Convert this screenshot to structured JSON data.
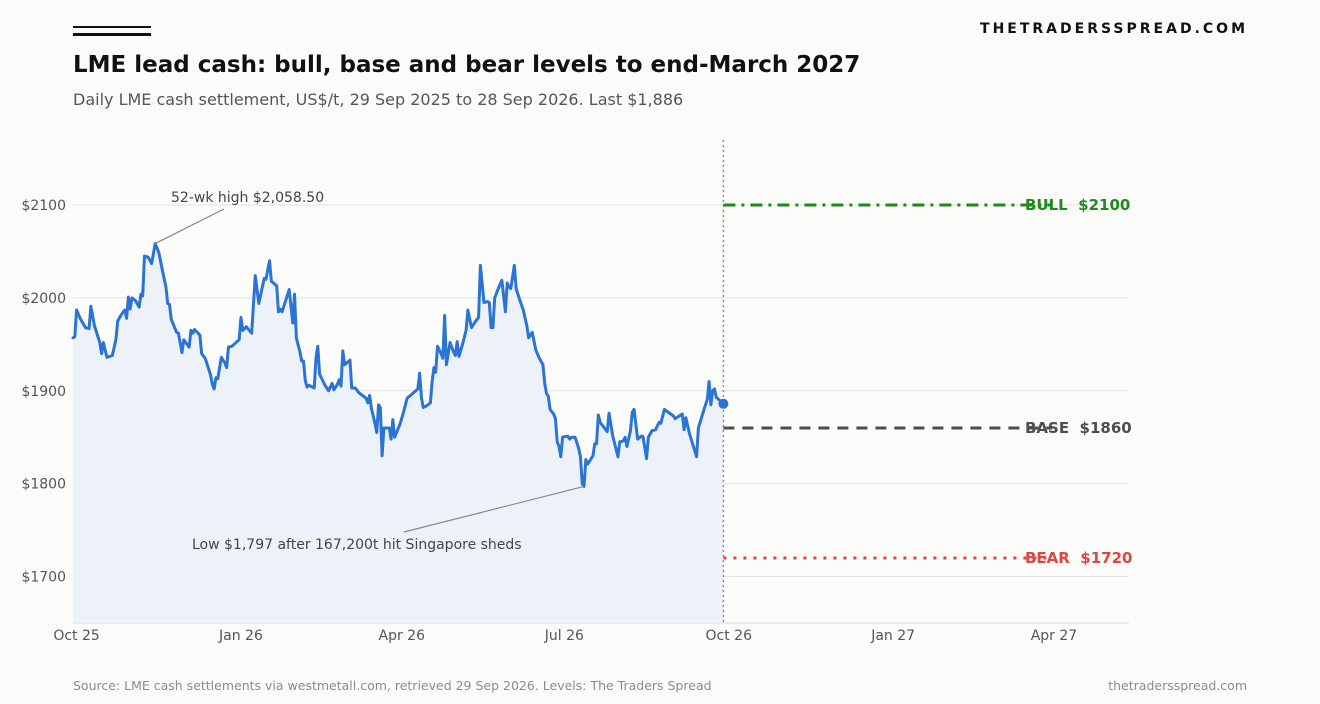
{
  "header": {
    "brand": "THETRADERSSPREAD.COM",
    "title": "LME lead cash: bull, base and bear levels to end-March 2027",
    "subtitle": "Daily LME cash settlement, US$/t, 29 Sep 2025 to 28 Sep 2026. Last $1,886"
  },
  "footer": {
    "source": "Source: LME cash settlements via westmetall.com, retrieved 29 Sep 2026. Levels: The Traders Spread",
    "site": "thetradersspread.com"
  },
  "chart_data": {
    "type": "line",
    "xlabel": "",
    "ylabel": "",
    "ylim": [
      1650,
      2170
    ],
    "xlim": [
      "2025-09-29",
      "2027-05-13"
    ],
    "grid": "horizontal",
    "y_ticks": [
      1700,
      1800,
      1900,
      2000,
      2100
    ],
    "y_tick_labels": [
      "$1700",
      "$1800",
      "$1900",
      "$2000",
      "$2100"
    ],
    "x_ticks": [
      "2025-10-01",
      "2026-01-01",
      "2026-04-01",
      "2026-07-01",
      "2026-10-01",
      "2027-01-01",
      "2027-04-01"
    ],
    "x_tick_labels": [
      "Oct 25",
      "Jan 26",
      "Apr 26",
      "Jul 26",
      "Oct 26",
      "Jan 27",
      "Apr 27"
    ],
    "series": [
      {
        "name": "",
        "color": "#2b74d6",
        "fill": "#edf2f9",
        "last_value": 1886,
        "points": [
          [
            "2025-09-29",
            1957
          ],
          [
            "2025-09-30",
            1958
          ],
          [
            "2025-10-01",
            1987
          ],
          [
            "2025-10-03",
            1978
          ],
          [
            "2025-10-06",
            1968
          ],
          [
            "2025-10-08",
            1967
          ],
          [
            "2025-10-09",
            1991
          ],
          [
            "2025-10-11",
            1970
          ],
          [
            "2025-10-14",
            1952
          ],
          [
            "2025-10-15",
            1940
          ],
          [
            "2025-10-16",
            1952
          ],
          [
            "2025-10-18",
            1936
          ],
          [
            "2025-10-21",
            1938
          ],
          [
            "2025-10-23",
            1955
          ],
          [
            "2025-10-24",
            1975
          ],
          [
            "2025-10-26",
            1982
          ],
          [
            "2025-10-28",
            1987
          ],
          [
            "2025-10-29",
            1978
          ],
          [
            "2025-10-30",
            2001
          ],
          [
            "2025-10-31",
            1988
          ],
          [
            "2025-11-01",
            2000
          ],
          [
            "2025-11-03",
            1997
          ],
          [
            "2025-11-05",
            1990
          ],
          [
            "2025-11-06",
            2004
          ],
          [
            "2025-11-07",
            2002
          ],
          [
            "2025-11-08",
            2045
          ],
          [
            "2025-11-10",
            2044
          ],
          [
            "2025-11-12",
            2037
          ],
          [
            "2025-11-14",
            2058.5
          ],
          [
            "2025-11-16",
            2049
          ],
          [
            "2025-11-18",
            2030
          ],
          [
            "2025-11-20",
            2012
          ],
          [
            "2025-11-21",
            1994
          ],
          [
            "2025-11-22",
            1993
          ],
          [
            "2025-11-23",
            1977
          ],
          [
            "2025-11-26",
            1963
          ],
          [
            "2025-11-27",
            1962
          ],
          [
            "2025-11-29",
            1941
          ],
          [
            "2025-11-30",
            1955
          ],
          [
            "2025-12-03",
            1947
          ],
          [
            "2025-12-04",
            1965
          ],
          [
            "2025-12-05",
            1962
          ],
          [
            "2025-12-06",
            1966
          ],
          [
            "2025-12-09",
            1960
          ],
          [
            "2025-12-10",
            1940
          ],
          [
            "2025-12-12",
            1935
          ],
          [
            "2025-12-15",
            1917
          ],
          [
            "2025-12-16",
            1907
          ],
          [
            "2025-12-17",
            1902
          ],
          [
            "2025-12-18",
            1914
          ],
          [
            "2025-12-19",
            1913
          ],
          [
            "2025-12-21",
            1936
          ],
          [
            "2025-12-23",
            1930
          ],
          [
            "2025-12-24",
            1925
          ],
          [
            "2025-12-25",
            1947
          ],
          [
            "2025-12-27",
            1948
          ],
          [
            "2025-12-31",
            1955
          ],
          [
            "2026-01-01",
            1979
          ],
          [
            "2026-01-02",
            1965
          ],
          [
            "2026-01-04",
            1969
          ],
          [
            "2026-01-07",
            1962
          ],
          [
            "2026-01-09",
            2024
          ],
          [
            "2026-01-11",
            1994
          ],
          [
            "2026-01-14",
            2021
          ],
          [
            "2026-01-15",
            2020
          ],
          [
            "2026-01-17",
            2040
          ],
          [
            "2026-01-18",
            2018
          ],
          [
            "2026-01-21",
            2013
          ],
          [
            "2026-01-22",
            1985
          ],
          [
            "2026-01-23",
            1988
          ],
          [
            "2026-01-24",
            1985
          ],
          [
            "2026-01-28",
            2009
          ],
          [
            "2026-01-30",
            1973
          ],
          [
            "2026-01-31",
            2004
          ],
          [
            "2026-02-01",
            1957
          ],
          [
            "2026-02-03",
            1942
          ],
          [
            "2026-02-04",
            1932
          ],
          [
            "2026-02-05",
            1932
          ],
          [
            "2026-02-06",
            1911
          ],
          [
            "2026-02-07",
            1904
          ],
          [
            "2026-02-08",
            1906
          ],
          [
            "2026-02-11",
            1903
          ],
          [
            "2026-02-12",
            1935
          ],
          [
            "2026-02-13",
            1948
          ],
          [
            "2026-02-14",
            1918
          ],
          [
            "2026-02-17",
            1906
          ],
          [
            "2026-02-19",
            1900
          ],
          [
            "2026-02-21",
            1908
          ],
          [
            "2026-02-22",
            1901
          ],
          [
            "2026-02-24",
            1907
          ],
          [
            "2026-02-25",
            1912
          ],
          [
            "2026-02-26",
            1905
          ],
          [
            "2026-02-27",
            1943
          ],
          [
            "2026-02-28",
            1928
          ],
          [
            "2026-03-03",
            1933
          ],
          [
            "2026-03-04",
            1903
          ],
          [
            "2026-03-06",
            1903
          ],
          [
            "2026-03-08",
            1898
          ],
          [
            "2026-03-10",
            1895
          ],
          [
            "2026-03-12",
            1892
          ],
          [
            "2026-03-13",
            1887
          ],
          [
            "2026-03-14",
            1895
          ],
          [
            "2026-03-15",
            1881
          ],
          [
            "2026-03-17",
            1865
          ],
          [
            "2026-03-18",
            1855
          ],
          [
            "2026-03-19",
            1885
          ],
          [
            "2026-03-20",
            1882
          ],
          [
            "2026-03-21",
            1830
          ],
          [
            "2026-03-22",
            1860
          ],
          [
            "2026-03-25",
            1860
          ],
          [
            "2026-03-26",
            1848
          ],
          [
            "2026-03-27",
            1869
          ],
          [
            "2026-03-28",
            1850
          ],
          [
            "2026-03-31",
            1864
          ],
          [
            "2026-04-02",
            1877
          ],
          [
            "2026-04-04",
            1892
          ],
          [
            "2026-04-07",
            1897
          ],
          [
            "2026-04-10",
            1902
          ],
          [
            "2026-04-11",
            1919
          ],
          [
            "2026-04-12",
            1893
          ],
          [
            "2026-04-13",
            1882
          ],
          [
            "2026-04-15",
            1884
          ],
          [
            "2026-04-17",
            1887
          ],
          [
            "2026-04-18",
            1910
          ],
          [
            "2026-04-19",
            1925
          ],
          [
            "2026-04-20",
            1920
          ],
          [
            "2026-04-21",
            1948
          ],
          [
            "2026-04-23",
            1940
          ],
          [
            "2026-04-24",
            1935
          ],
          [
            "2026-04-25",
            1981
          ],
          [
            "2026-04-26",
            1928
          ],
          [
            "2026-04-28",
            1952
          ],
          [
            "2026-04-30",
            1942
          ],
          [
            "2026-05-01",
            1938
          ],
          [
            "2026-05-02",
            1953
          ],
          [
            "2026-05-03",
            1937
          ],
          [
            "2026-05-05",
            1950
          ],
          [
            "2026-05-07",
            1965
          ],
          [
            "2026-05-08",
            1987
          ],
          [
            "2026-05-10",
            1968
          ],
          [
            "2026-05-12",
            1974
          ],
          [
            "2026-05-14",
            1979
          ],
          [
            "2026-05-15",
            2035
          ],
          [
            "2026-05-17",
            1995
          ],
          [
            "2026-05-19",
            1996
          ],
          [
            "2026-05-20",
            1995
          ],
          [
            "2026-05-21",
            1968
          ],
          [
            "2026-05-22",
            1968
          ],
          [
            "2026-05-23",
            2000
          ],
          [
            "2026-05-25",
            2010
          ],
          [
            "2026-05-27",
            2019
          ],
          [
            "2026-05-29",
            1985
          ],
          [
            "2026-05-30",
            2016
          ],
          [
            "2026-05-31",
            2012
          ],
          [
            "2026-06-01",
            2010
          ],
          [
            "2026-06-03",
            2035
          ],
          [
            "2026-06-04",
            2010
          ],
          [
            "2026-06-06",
            1998
          ],
          [
            "2026-06-08",
            1987
          ],
          [
            "2026-06-10",
            1970
          ],
          [
            "2026-06-11",
            1957
          ],
          [
            "2026-06-13",
            1963
          ],
          [
            "2026-06-15",
            1944
          ],
          [
            "2026-06-17",
            1935
          ],
          [
            "2026-06-19",
            1928
          ],
          [
            "2026-06-20",
            1908
          ],
          [
            "2026-06-21",
            1897
          ],
          [
            "2026-06-22",
            1894
          ],
          [
            "2026-06-23",
            1880
          ],
          [
            "2026-06-25",
            1875
          ],
          [
            "2026-06-26",
            1870
          ],
          [
            "2026-06-27",
            1845
          ],
          [
            "2026-06-28",
            1840
          ],
          [
            "2026-06-29",
            1829
          ],
          [
            "2026-06-30",
            1850
          ],
          [
            "2026-07-02",
            1851
          ],
          [
            "2026-07-03",
            1851
          ],
          [
            "2026-07-04",
            1848
          ],
          [
            "2026-07-05",
            1850
          ],
          [
            "2026-07-07",
            1850
          ],
          [
            "2026-07-09",
            1838
          ],
          [
            "2026-07-10",
            1829
          ],
          [
            "2026-07-11",
            1800
          ],
          [
            "2026-07-12",
            1797
          ],
          [
            "2026-07-13",
            1826
          ],
          [
            "2026-07-14",
            1821
          ],
          [
            "2026-07-17",
            1830
          ],
          [
            "2026-07-18",
            1843
          ],
          [
            "2026-07-19",
            1843
          ],
          [
            "2026-07-20",
            1874
          ],
          [
            "2026-07-21",
            1866
          ],
          [
            "2026-07-23",
            1861
          ],
          [
            "2026-07-25",
            1856
          ],
          [
            "2026-07-26",
            1876
          ],
          [
            "2026-07-28",
            1852
          ],
          [
            "2026-07-31",
            1829
          ],
          [
            "2026-08-01",
            1845
          ],
          [
            "2026-08-03",
            1846
          ],
          [
            "2026-08-04",
            1850
          ],
          [
            "2026-08-05",
            1840
          ],
          [
            "2026-08-07",
            1857
          ],
          [
            "2026-08-08",
            1877
          ],
          [
            "2026-08-09",
            1880
          ],
          [
            "2026-08-11",
            1848
          ],
          [
            "2026-08-13",
            1851
          ],
          [
            "2026-08-14",
            1851
          ],
          [
            "2026-08-16",
            1827
          ],
          [
            "2026-08-17",
            1850
          ],
          [
            "2026-08-19",
            1857
          ],
          [
            "2026-08-21",
            1858
          ],
          [
            "2026-08-23",
            1866
          ],
          [
            "2026-08-24",
            1865
          ],
          [
            "2026-08-26",
            1880
          ],
          [
            "2026-08-28",
            1877
          ],
          [
            "2026-08-31",
            1873
          ],
          [
            "2026-09-01",
            1870
          ],
          [
            "2026-09-05",
            1875
          ],
          [
            "2026-09-06",
            1858
          ],
          [
            "2026-09-07",
            1871
          ],
          [
            "2026-09-09",
            1854
          ],
          [
            "2026-09-13",
            1829
          ],
          [
            "2026-09-14",
            1860
          ],
          [
            "2026-09-17",
            1879
          ],
          [
            "2026-09-19",
            1891
          ],
          [
            "2026-09-20",
            1910
          ],
          [
            "2026-09-21",
            1885
          ],
          [
            "2026-09-22",
            1900
          ],
          [
            "2026-09-23",
            1902
          ],
          [
            "2026-09-24",
            1893
          ],
          [
            "2026-09-28",
            1886
          ]
        ]
      }
    ],
    "levels": [
      {
        "label": "BULL",
        "value_label": "$2100",
        "value": 2100,
        "color": "#1e8a1e",
        "style": "dashdot",
        "start": "2026-09-28",
        "end": "2027-03-31"
      },
      {
        "label": "BASE",
        "value_label": "$1860",
        "value": 1860,
        "color": "#4d4d4d",
        "style": "dashed",
        "start": "2026-09-28",
        "end": "2027-03-31"
      },
      {
        "label": "BEAR",
        "value_label": "$1720",
        "value": 1720,
        "color": "#e0453f",
        "style": "dotted",
        "start": "2026-09-28",
        "end": "2027-03-31"
      }
    ],
    "divider": {
      "date": "2026-09-28",
      "color": "#8a8a8a",
      "style": "dotted"
    },
    "annotations": [
      {
        "text": "52-wk high $2,058.50",
        "point": [
          "2025-11-14",
          2058.5
        ],
        "anchor": "above-right"
      },
      {
        "text": "Low $1,797 after 167,200t hit Singapore sheds",
        "point": [
          "2026-07-12",
          1797
        ],
        "anchor": "below-left"
      }
    ]
  }
}
